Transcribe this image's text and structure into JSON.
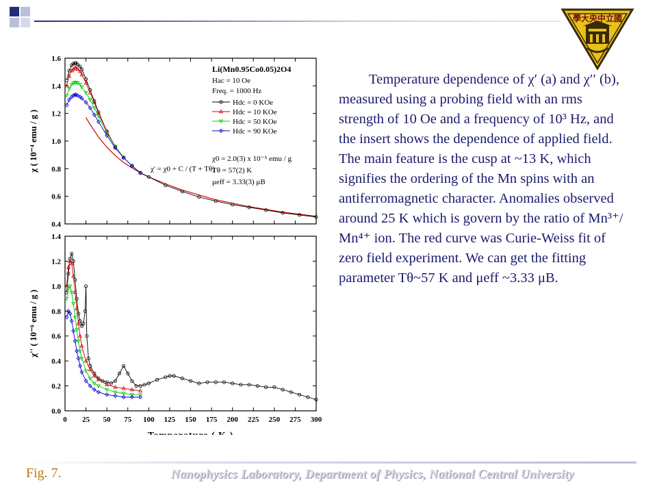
{
  "description": {
    "text": "Temperature dependence of χ′ (a) and χ′′ (b), measured using a probing field with an rms strength of 10 Oe and a frequency of 10³ Hz, and the insert shows the dependence of applied field. The main feature is the cusp at ~13 K, which signifies the ordering of the Mn spins with an antiferromagnetic character. Anomalies observed around 25 K which is govern by the ratio of Mn³⁺/ Mn⁴⁺ ion. The red curve was Curie-Weiss fit of zero field experiment. We can get the fitting parameter Tθ~57 K and μeff ~3.33 μB."
  },
  "footer": {
    "fig_label": "Fig. 7.",
    "lab_name": "Nanophysics Laboratory, Department of Physics, National Central University"
  },
  "logo": {
    "text": "學大央中立國",
    "icon": "university-seal-icon"
  },
  "colors": {
    "text": "#1a1a6e",
    "fig_label": "#b87a14",
    "series": [
      "#000000",
      "#cc0000",
      "#00cc00",
      "#0000cc"
    ],
    "fit": "#cc0000"
  },
  "chart_data": [
    {
      "type": "scatter",
      "panel": "top",
      "ylabel": "χ ( 10⁻⁴ emu / g )",
      "xlim": [
        0,
        300
      ],
      "ylim": [
        0.4,
        1.6
      ],
      "yticks": [
        "0.4",
        "0.6",
        "0.8",
        "1.0",
        "1.2",
        "1.4",
        "1.6"
      ],
      "legend": {
        "title": "Li(Mn0.95Co0.05)2O4",
        "lines": [
          "Hac = 10 Oe",
          "Freq. = 1000 Hz"
        ],
        "entries": [
          "Hdc = 0 KOe",
          "Hdc = 10 KOe",
          "Hdc = 50 KOe",
          "Hdc = 90 KOe"
        ]
      },
      "fit_label": "χ' = χ0 + C / (T + Tθ)",
      "fit_params": [
        "χ0 = 2.0(3) x 10⁻⁵ emu / g",
        "Tθ = 57(2) K",
        "μeff = 3.33(3) μB"
      ],
      "series": [
        {
          "name": "Hdc = 0 KOe",
          "x": [
            2,
            5,
            8,
            10,
            12,
            13,
            15,
            18,
            20,
            25,
            30,
            35,
            40,
            50,
            60,
            70,
            80,
            90,
            100,
            120,
            140,
            160,
            180,
            200,
            220,
            240,
            260,
            280,
            300
          ],
          "y": [
            1.44,
            1.51,
            1.55,
            1.56,
            1.565,
            1.565,
            1.555,
            1.54,
            1.52,
            1.45,
            1.37,
            1.29,
            1.21,
            1.07,
            0.96,
            0.88,
            0.82,
            0.77,
            0.74,
            0.68,
            0.635,
            0.595,
            0.565,
            0.54,
            0.52,
            0.5,
            0.48,
            0.465,
            0.45
          ]
        },
        {
          "name": "Hdc = 10 KOe",
          "x": [
            2,
            5,
            8,
            10,
            12,
            13,
            15,
            18,
            20,
            25,
            30,
            35,
            40,
            50,
            60,
            70,
            80,
            90
          ],
          "y": [
            1.4,
            1.47,
            1.51,
            1.52,
            1.53,
            1.53,
            1.52,
            1.505,
            1.48,
            1.42,
            1.35,
            1.28,
            1.2,
            1.07,
            0.96,
            0.88,
            0.82,
            0.77
          ]
        },
        {
          "name": "Hdc = 50 KOe",
          "x": [
            2,
            5,
            8,
            10,
            12,
            13,
            15,
            18,
            20,
            25,
            30,
            35,
            40,
            50,
            60,
            70,
            80,
            90
          ],
          "y": [
            1.33,
            1.38,
            1.41,
            1.42,
            1.425,
            1.425,
            1.42,
            1.41,
            1.39,
            1.35,
            1.3,
            1.24,
            1.18,
            1.06,
            0.96,
            0.88,
            0.82,
            0.77
          ]
        },
        {
          "name": "Hdc = 90 KOe",
          "x": [
            2,
            5,
            8,
            10,
            12,
            13,
            15,
            18,
            20,
            25,
            30,
            35,
            40,
            50,
            60,
            70,
            80,
            90
          ],
          "y": [
            1.26,
            1.3,
            1.32,
            1.33,
            1.335,
            1.335,
            1.33,
            1.32,
            1.31,
            1.28,
            1.24,
            1.19,
            1.14,
            1.04,
            0.95,
            0.88,
            0.82,
            0.77
          ]
        }
      ],
      "fit": {
        "x": [
          25,
          30,
          40,
          50,
          60,
          70,
          80,
          90,
          100,
          120,
          140,
          160,
          180,
          200,
          220,
          240,
          260,
          280,
          300
        ],
        "y": [
          1.17,
          1.12,
          1.03,
          0.955,
          0.895,
          0.845,
          0.805,
          0.77,
          0.74,
          0.69,
          0.645,
          0.61,
          0.575,
          0.55,
          0.525,
          0.505,
          0.485,
          0.47,
          0.455
        ]
      }
    },
    {
      "type": "scatter",
      "panel": "bottom",
      "ylabel": "χ'' ( 10⁻⁶ emu / g )",
      "xlabel": "Temperature ( K )",
      "xlim": [
        0,
        300
      ],
      "ylim": [
        0.0,
        1.4
      ],
      "yticks": [
        "0.0",
        "0.2",
        "0.4",
        "0.6",
        "0.8",
        "1.0",
        "1.2",
        "1.4"
      ],
      "xticks": [
        "0",
        "25",
        "50",
        "75",
        "100",
        "125",
        "150",
        "175",
        "200",
        "225",
        "250",
        "275",
        "300"
      ],
      "series": [
        {
          "name": "Hdc = 0 KOe",
          "x": [
            2,
            4,
            6,
            8,
            10,
            12,
            14,
            16,
            18,
            20,
            22,
            24,
            25,
            26,
            28,
            30,
            35,
            40,
            45,
            50,
            55,
            60,
            65,
            70,
            75,
            80,
            85,
            90,
            95,
            100,
            110,
            120,
            125,
            130,
            140,
            150,
            160,
            170,
            180,
            190,
            200,
            210,
            220,
            230,
            240,
            250,
            260,
            270,
            280,
            290,
            300
          ],
          "y": [
            0.95,
            1.1,
            1.22,
            1.26,
            1.2,
            1.05,
            0.9,
            0.78,
            0.72,
            0.68,
            0.7,
            0.8,
            1.0,
            0.6,
            0.42,
            0.36,
            0.3,
            0.26,
            0.24,
            0.23,
            0.22,
            0.24,
            0.3,
            0.36,
            0.3,
            0.24,
            0.2,
            0.2,
            0.21,
            0.22,
            0.25,
            0.27,
            0.28,
            0.28,
            0.26,
            0.24,
            0.22,
            0.23,
            0.23,
            0.23,
            0.22,
            0.21,
            0.21,
            0.2,
            0.19,
            0.19,
            0.17,
            0.15,
            0.13,
            0.11,
            0.09
          ]
        },
        {
          "name": "Hdc = 10 KOe",
          "x": [
            2,
            4,
            6,
            8,
            10,
            12,
            14,
            16,
            18,
            20,
            25,
            30,
            35,
            40,
            50,
            60,
            70,
            80,
            90
          ],
          "y": [
            1.0,
            1.15,
            1.2,
            1.18,
            1.08,
            0.95,
            0.82,
            0.7,
            0.6,
            0.52,
            0.4,
            0.33,
            0.28,
            0.25,
            0.21,
            0.19,
            0.18,
            0.17,
            0.16
          ]
        },
        {
          "name": "Hdc = 50 KOe",
          "x": [
            2,
            4,
            6,
            8,
            10,
            12,
            14,
            16,
            18,
            20,
            25,
            30,
            35,
            40,
            50,
            60,
            70,
            80,
            90
          ],
          "y": [
            0.9,
            0.98,
            1.0,
            0.95,
            0.86,
            0.75,
            0.65,
            0.56,
            0.48,
            0.42,
            0.32,
            0.26,
            0.22,
            0.2,
            0.17,
            0.15,
            0.14,
            0.13,
            0.13
          ]
        },
        {
          "name": "Hdc = 90 KOe",
          "x": [
            2,
            4,
            6,
            8,
            10,
            12,
            14,
            16,
            18,
            20,
            25,
            30,
            35,
            40,
            50,
            60,
            70,
            80,
            90
          ],
          "y": [
            0.75,
            0.8,
            0.78,
            0.72,
            0.64,
            0.56,
            0.48,
            0.42,
            0.36,
            0.31,
            0.24,
            0.2,
            0.17,
            0.15,
            0.13,
            0.12,
            0.11,
            0.11,
            0.11
          ]
        }
      ]
    }
  ]
}
